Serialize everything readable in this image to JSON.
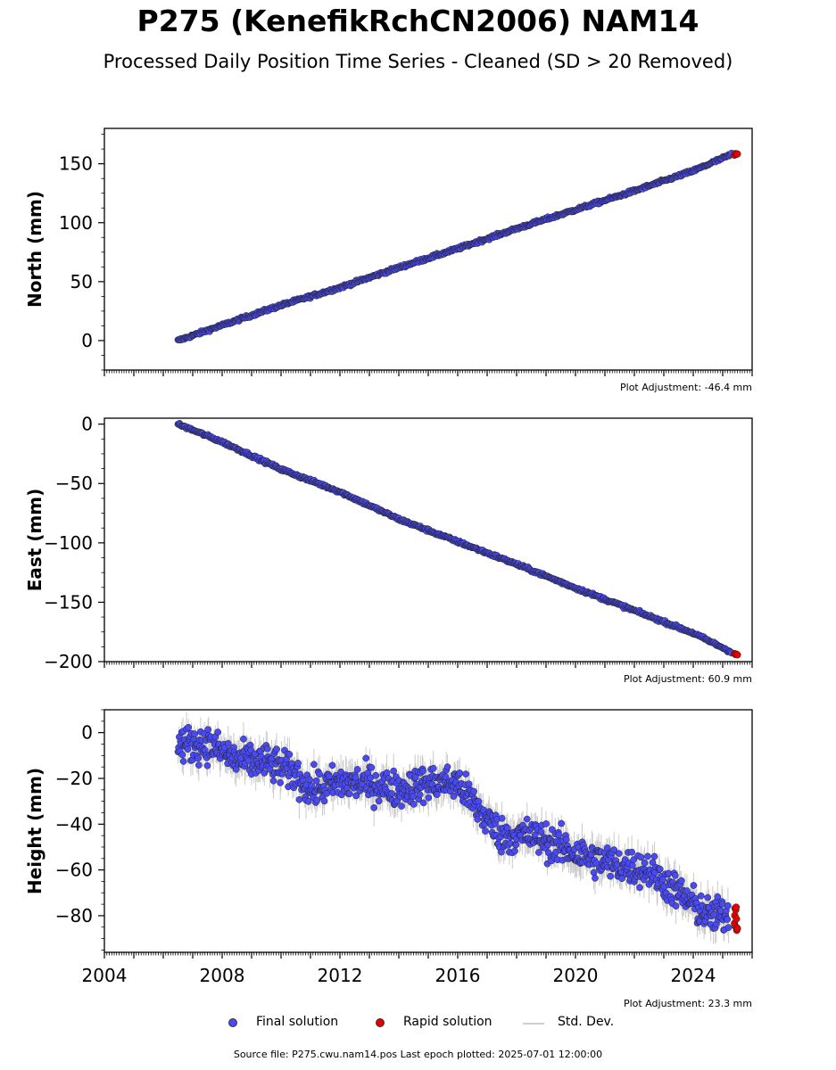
{
  "title": "P275 (KenefikRchCN2006) NAM14",
  "subtitle": "Processed Daily Position Time Series - Cleaned (SD > 20 Removed)",
  "footer": "Source file: P275.cwu.nam14.pos  Last epoch plotted: 2025-07-01 12:00:00",
  "legend": {
    "final": "Final solution",
    "rapid": "Rapid solution",
    "std": "Std. Dev."
  },
  "colors": {
    "final": "#4a4af5",
    "rapid": "#e60000",
    "std": "#b4b4b4",
    "marker_edge": "#222222"
  },
  "chart_data": [
    {
      "type": "scatter",
      "panel": "north",
      "ylabel": "North (mm)",
      "xlim": [
        2004,
        2026
      ],
      "ylim": [
        -25,
        180
      ],
      "yticks": [
        0,
        50,
        100,
        150
      ],
      "adjustment": "Plot Adjustment: -46.4 mm",
      "series": [
        {
          "name": "Final solution",
          "x": [
            2006.5,
            2008,
            2010,
            2012,
            2014,
            2016,
            2018,
            2020,
            2022,
            2024,
            2025.3
          ],
          "y": [
            0,
            13,
            30,
            45,
            62,
            78,
            95,
            111,
            127,
            144,
            158
          ]
        },
        {
          "name": "Rapid solution",
          "x": [
            2025.4,
            2025.5
          ],
          "y": [
            158,
            159
          ]
        }
      ]
    },
    {
      "type": "scatter",
      "panel": "east",
      "ylabel": "East (mm)",
      "xlim": [
        2004,
        2026
      ],
      "ylim": [
        -200,
        5
      ],
      "yticks": [
        0,
        -50,
        -100,
        -150,
        -200
      ],
      "adjustment": "Plot Adjustment: 60.9 mm",
      "series": [
        {
          "name": "Final solution",
          "x": [
            2006.5,
            2008,
            2010,
            2012,
            2014,
            2016,
            2018,
            2020,
            2022,
            2024,
            2025.3
          ],
          "y": [
            0,
            -15,
            -38,
            -57,
            -80,
            -99,
            -118,
            -138,
            -157,
            -176,
            -192
          ]
        },
        {
          "name": "Rapid solution",
          "x": [
            2025.4,
            2025.5
          ],
          "y": [
            -193,
            -195
          ]
        }
      ]
    },
    {
      "type": "scatter",
      "panel": "height",
      "ylabel": "Height (mm)",
      "xlim": [
        2004,
        2026
      ],
      "ylim": [
        -96,
        10
      ],
      "yticks": [
        0,
        -20,
        -40,
        -60,
        -80
      ],
      "xticks": [
        2004,
        2008,
        2012,
        2016,
        2020,
        2024
      ],
      "xtick_labels": [
        "2004",
        "2008",
        "2012",
        "2016",
        "2020",
        "2024"
      ],
      "adjustment": "Plot Adjustment: 23.3 mm",
      "series": [
        {
          "name": "Final solution",
          "x": [
            2006.5,
            2007.5,
            2008.5,
            2009.5,
            2010.5,
            2011,
            2012,
            2013,
            2014,
            2015,
            2016,
            2016.8,
            2017.5,
            2018.5,
            2019.5,
            2020.5,
            2021.5,
            2022.5,
            2023.5,
            2024.5,
            2025.2
          ],
          "y": [
            -5,
            -5,
            -12,
            -13,
            -18,
            -25,
            -22,
            -22,
            -25,
            -22,
            -22,
            -35,
            -45,
            -45,
            -50,
            -55,
            -58,
            -60,
            -70,
            -80,
            -80
          ]
        },
        {
          "name": "Rapid solution",
          "x": [
            2025.4,
            2025.5
          ],
          "y": [
            -78,
            -82
          ]
        }
      ]
    }
  ]
}
